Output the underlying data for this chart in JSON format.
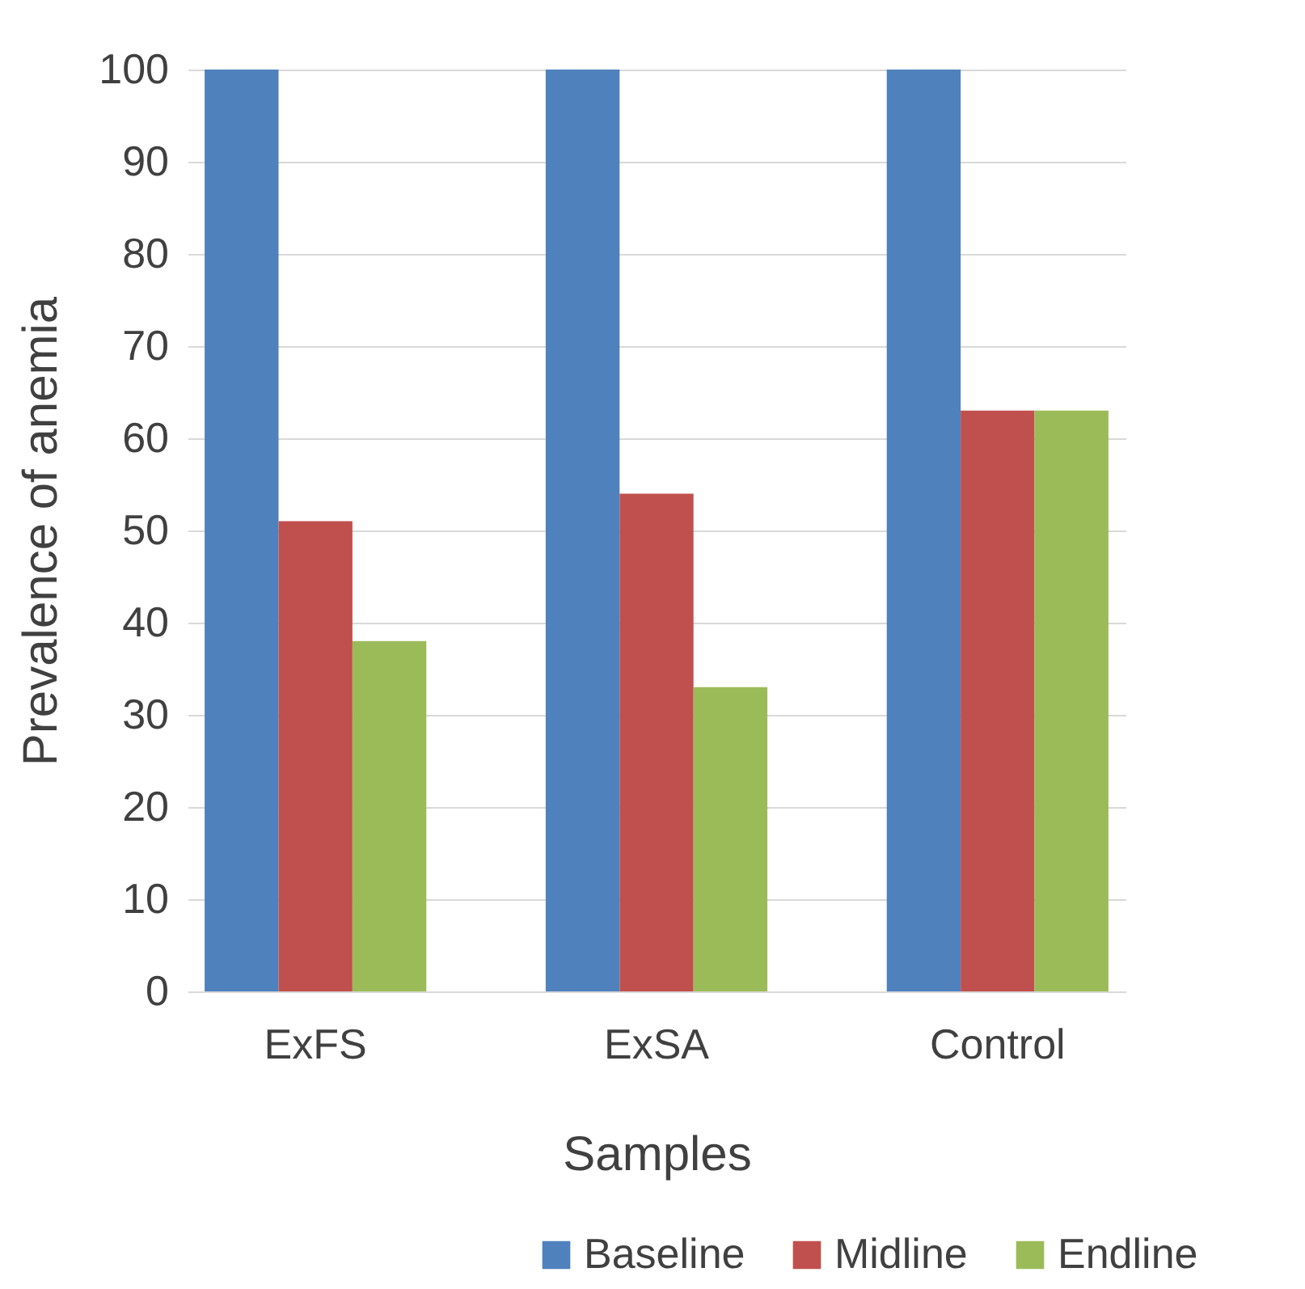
{
  "chart_data": {
    "type": "bar",
    "xlabel": "Samples",
    "ylabel": "Prevalence of anemia",
    "categories": [
      "ExFS",
      "ExSA",
      "Control"
    ],
    "series": [
      {
        "name": "Baseline",
        "color": "#4f81bd",
        "values": [
          100,
          100,
          100
        ]
      },
      {
        "name": "Midline",
        "color": "#c0504d",
        "values": [
          51,
          54,
          63
        ]
      },
      {
        "name": "Endline",
        "color": "#9bbb59",
        "values": [
          38,
          33,
          63
        ]
      }
    ],
    "ylim": [
      0,
      100
    ],
    "yticks": [
      0,
      10,
      20,
      30,
      40,
      50,
      60,
      70,
      80,
      90,
      100
    ],
    "grid": "y",
    "legend": "bottom right"
  }
}
